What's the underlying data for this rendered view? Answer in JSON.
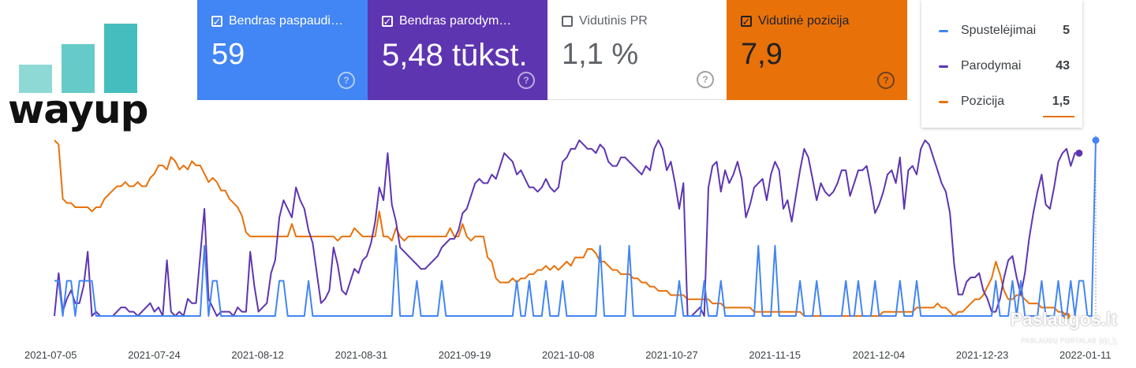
{
  "logo": {
    "text": "wayup",
    "bar_colors": [
      "#8ed9d6",
      "#66cbc8",
      "#45bdbf"
    ]
  },
  "cards": [
    {
      "label": "Bendras paspaudi…",
      "value": "59",
      "checked": true,
      "color": "#4285f4"
    },
    {
      "label": "Bendras parodym…",
      "value": "5,48 tūkst.",
      "checked": true,
      "color": "#5e35b1"
    },
    {
      "label": "Vidutinis PR",
      "value": "1,1 %",
      "checked": false,
      "color": "#ffffff"
    },
    {
      "label": "Vidutinė pozicija",
      "value": "7,9",
      "checked": true,
      "color": "#e8710a"
    }
  ],
  "legend": [
    {
      "name": "Spustelėjimai",
      "value": "5",
      "color": "#4285f4"
    },
    {
      "name": "Parodymai",
      "value": "43",
      "color": "#5e35b1"
    },
    {
      "name": "Pozicija",
      "value": "1,5",
      "color": "#e8710a"
    }
  ],
  "watermark": {
    "main": "Paslaugos.lt",
    "sub": "PASLAUGŲ PORTALAS",
    "nr": "Nr.1"
  },
  "chart_data": {
    "type": "line",
    "x_ticks": [
      "2021-07-05",
      "2021-07-24",
      "2021-08-12",
      "2021-08-31",
      "2021-09-19",
      "2021-10-08",
      "2021-10-27",
      "2021-11-15",
      "2021-12-04",
      "2021-12-23",
      "2022-01-11"
    ],
    "x_range": [
      "2021-07-05",
      "2022-01-11"
    ],
    "grid": false,
    "series": [
      {
        "name": "Pozicija",
        "color": "#e8710a",
        "values": [
          24,
          23,
          10,
          9,
          9,
          8,
          8,
          8,
          8,
          7,
          8,
          8,
          10,
          11,
          12,
          13,
          13,
          14,
          13,
          13,
          14,
          13,
          13,
          15,
          16,
          18,
          18,
          17,
          20,
          19,
          17,
          18,
          17,
          19,
          18,
          18,
          16,
          14,
          15,
          14,
          12,
          12,
          10,
          9,
          8,
          6,
          2,
          1,
          1,
          1,
          1,
          1,
          1,
          1,
          1,
          1,
          1,
          4,
          1,
          1,
          1,
          1,
          1,
          1,
          1,
          1,
          1,
          1,
          0,
          1,
          1,
          1,
          3,
          2,
          1,
          1,
          1,
          1,
          7,
          1,
          1,
          0,
          3,
          1,
          0,
          1,
          1,
          1,
          1,
          1,
          1,
          1,
          1,
          1,
          1,
          3,
          1,
          1,
          4,
          1,
          0,
          1,
          1,
          1,
          -4,
          -5,
          -9,
          -10,
          -10,
          -10,
          -9,
          -10,
          -9,
          -9,
          -8,
          -8,
          -7,
          -7,
          -6,
          -7,
          -6,
          -7,
          -6,
          -5,
          -6,
          -4,
          -4,
          -4,
          -2,
          -2,
          -3,
          -5,
          -5,
          -6,
          -7,
          -7,
          -8,
          -8,
          -8,
          -9,
          -9,
          -10,
          -10,
          -11,
          -11,
          -12,
          -12,
          -12,
          -13,
          -13,
          -13,
          -13,
          -14,
          -14,
          -14,
          -14,
          -14,
          -14,
          -15,
          -15,
          -15,
          -16,
          -16,
          -16,
          -16,
          -16,
          -16,
          -16,
          -17,
          -17,
          -17,
          -17,
          -17,
          -17,
          -17,
          -17,
          -17,
          -17,
          -17,
          -17,
          -18,
          -18,
          -18,
          -18,
          -18,
          -18,
          -18,
          -18,
          -18,
          -18,
          -18,
          -18,
          -18,
          -18,
          -18,
          -18,
          -18,
          -18,
          -18,
          -17,
          -17,
          -17,
          -17,
          -17,
          -17,
          -17,
          -17,
          -16,
          -16,
          -16,
          -16,
          -16,
          -15,
          -16,
          -16,
          -17,
          -18,
          -17,
          -17,
          -16,
          -15,
          -14,
          -14,
          -13,
          -11,
          -9,
          -5,
          -8,
          -12,
          -14,
          -14,
          -13,
          -13,
          -14,
          -15,
          -15,
          -15,
          -16,
          -16,
          -16,
          -16,
          -17,
          -17,
          -18
        ]
      },
      {
        "name": "Parodymai",
        "color": "#5e35b1",
        "values": [
          5,
          15,
          6,
          9,
          11,
          8,
          8,
          12,
          20,
          5,
          6,
          5,
          5,
          5,
          5,
          6,
          7,
          7,
          6,
          6,
          5,
          6,
          7,
          8,
          6,
          7,
          5,
          18,
          6,
          5,
          6,
          5,
          9,
          8,
          8,
          19,
          30,
          9,
          7,
          5,
          6,
          6,
          6,
          5,
          7,
          6,
          6,
          20,
          12,
          6,
          7,
          8,
          15,
          18,
          28,
          32,
          30,
          28,
          35,
          32,
          30,
          25,
          22,
          15,
          8,
          9,
          11,
          21,
          17,
          11,
          10,
          13,
          16,
          15,
          18,
          19,
          22,
          27,
          35,
          32,
          43,
          31,
          27,
          21,
          20,
          19,
          18,
          17,
          16,
          16,
          17,
          18,
          19,
          21,
          22,
          23,
          23,
          25,
          29,
          30,
          33,
          36,
          37,
          36,
          36,
          38,
          37,
          40,
          43,
          42,
          41,
          38,
          39,
          37,
          35,
          35,
          34,
          35,
          37,
          35,
          34,
          35,
          41,
          42,
          44,
          44,
          46,
          45,
          44,
          44,
          43,
          45,
          44,
          41,
          40,
          40,
          42,
          42,
          41,
          40,
          39,
          38,
          40,
          39,
          44,
          46,
          44,
          39,
          41,
          36,
          30,
          36,
          5,
          5,
          6,
          7,
          5,
          35,
          40,
          41,
          34,
          39,
          36,
          38,
          41,
          37,
          28,
          31,
          35,
          36,
          37,
          32,
          38,
          41,
          39,
          30,
          32,
          27,
          33,
          39,
          44,
          42,
          37,
          32,
          36,
          34,
          33,
          34,
          36,
          39,
          39,
          33,
          36,
          39,
          39,
          40,
          35,
          29,
          31,
          34,
          38,
          39,
          36,
          42,
          30,
          39,
          40,
          38,
          44,
          46,
          45,
          42,
          39,
          36,
          34,
          29,
          17,
          10,
          10,
          13,
          14,
          14,
          15,
          11,
          9,
          6,
          6,
          9,
          14,
          18,
          19,
          14,
          10,
          15,
          23,
          29,
          34,
          38,
          31,
          30,
          35,
          41,
          43,
          44,
          40,
          43,
          43
        ]
      },
      {
        "name": "Spustelėjimai",
        "color": "#4285f4",
        "values": [
          1,
          1,
          0,
          1,
          1,
          0,
          1,
          1,
          1,
          1,
          0,
          0,
          0,
          0,
          0,
          0,
          0,
          0,
          0,
          0,
          0,
          0,
          0,
          0,
          0,
          0,
          0,
          0,
          0,
          0,
          0,
          0,
          0,
          0,
          0,
          0,
          2,
          0,
          1,
          1,
          0,
          0,
          0,
          0,
          0,
          0,
          0,
          0,
          0,
          0,
          0,
          0,
          0,
          0,
          1,
          1,
          0,
          0,
          0,
          0,
          0,
          1,
          0,
          0,
          0,
          0,
          0,
          0,
          0,
          0,
          0,
          0,
          0,
          0,
          0,
          0,
          0,
          0,
          0,
          0,
          0,
          0,
          2,
          0,
          0,
          0,
          0,
          1,
          0,
          0,
          0,
          0,
          0,
          1,
          0,
          0,
          0,
          0,
          0,
          0,
          0,
          0,
          0,
          0,
          0,
          0,
          0,
          0,
          0,
          0,
          0,
          1,
          0,
          0,
          1,
          0,
          0,
          0,
          1,
          0,
          0,
          0,
          1,
          0,
          0,
          0,
          0,
          0,
          0,
          0,
          0,
          2,
          0,
          0,
          0,
          0,
          0,
          0,
          2,
          0,
          0,
          0,
          0,
          0,
          0,
          0,
          0,
          0,
          0,
          0,
          1,
          0,
          0,
          0,
          0,
          0,
          1,
          0,
          0,
          0,
          1,
          0,
          0,
          0,
          0,
          0,
          0,
          0,
          0,
          2,
          0,
          0,
          0,
          2,
          0,
          0,
          0,
          0,
          0,
          1,
          0,
          0,
          0,
          1,
          0,
          0,
          0,
          0,
          0,
          0,
          1,
          0,
          0,
          1,
          0,
          0,
          0,
          1,
          0,
          0,
          0,
          0,
          0,
          1,
          0,
          0,
          0,
          1,
          0,
          0,
          0,
          0,
          0,
          0,
          0,
          0,
          0,
          0,
          0,
          0,
          0,
          0,
          0,
          0,
          0,
          0,
          1,
          0,
          0,
          0,
          1,
          0,
          1,
          0,
          0,
          0,
          0,
          1,
          0,
          0,
          0,
          1,
          0,
          0,
          1,
          0,
          1,
          1,
          0,
          0,
          5
        ]
      }
    ]
  }
}
